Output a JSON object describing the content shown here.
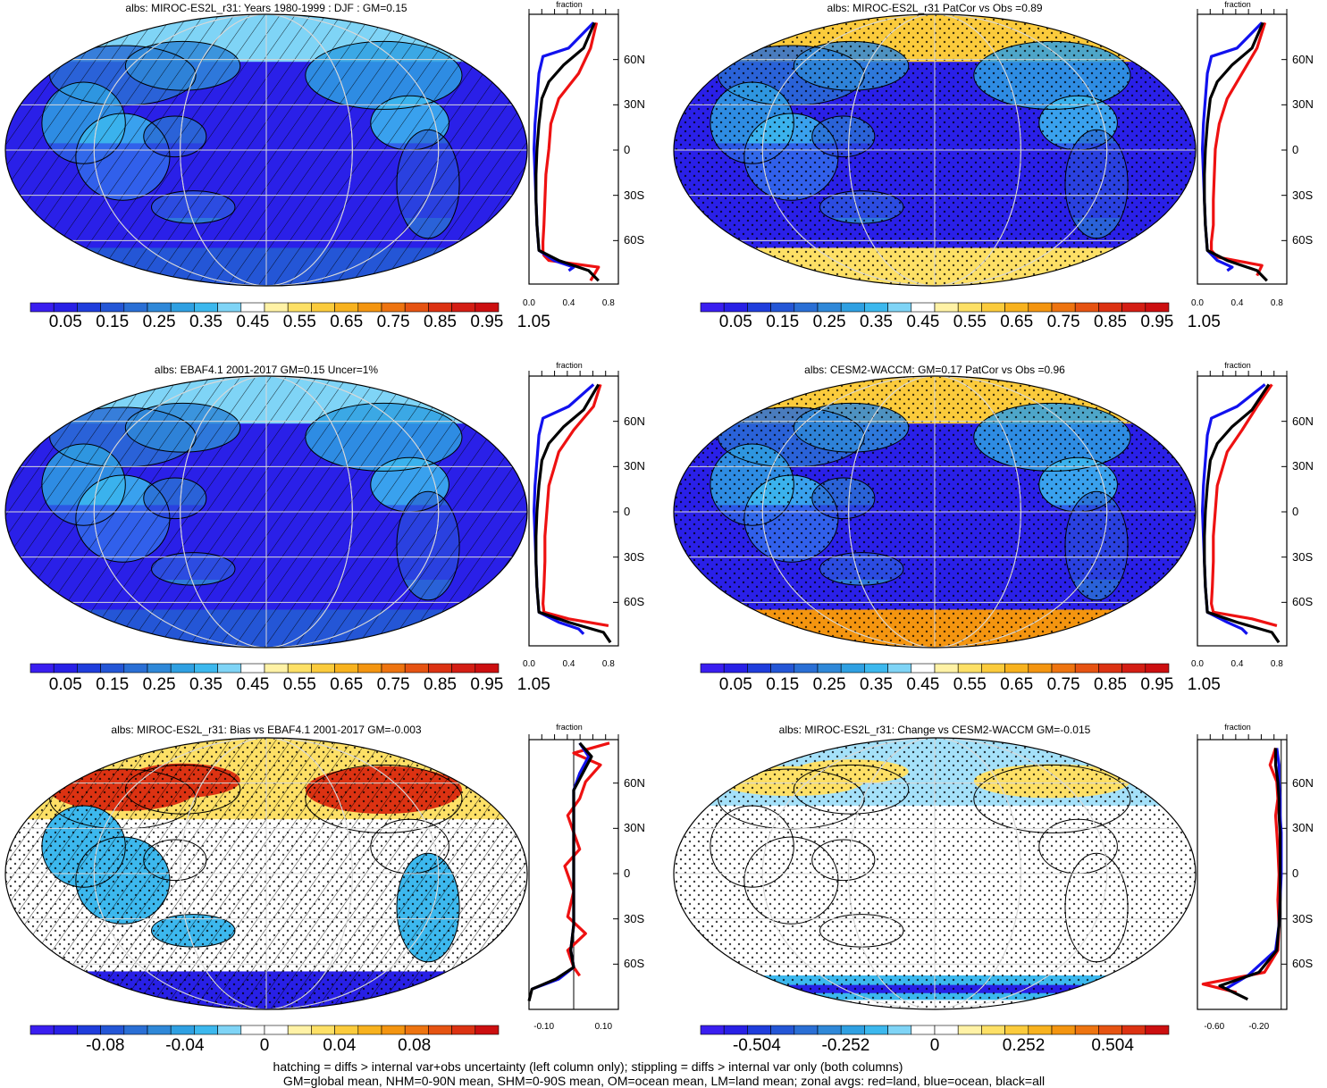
{
  "panels": [
    {
      "title": "albs: MIROC-ES2L_r31: Years 1980-1999 : DJF : GM=0.15",
      "fraction_label": "fraction",
      "x_ticks": [
        "0.0",
        "0.4",
        "0.8"
      ],
      "x_range": [
        0,
        0.9
      ],
      "zero_line": null,
      "type": "abs",
      "hatch": true,
      "stipple": false
    },
    {
      "title": "albs: MIROC-ES2L_r31 PatCor vs Obs =0.89",
      "fraction_label": "fraction",
      "x_ticks": [
        "0.0",
        "0.4",
        "0.8"
      ],
      "x_range": [
        0,
        0.9
      ],
      "zero_line": null,
      "type": "abs",
      "hatch": false,
      "stipple": true
    },
    {
      "title": "albs: EBAF4.1 2001-2017 GM=0.15 Uncer=1%",
      "fraction_label": "fraction",
      "x_ticks": [
        "0.0",
        "0.4",
        "0.8"
      ],
      "x_range": [
        0,
        0.9
      ],
      "zero_line": null,
      "type": "abs",
      "hatch": true,
      "stipple": false
    },
    {
      "title": "albs: CESM2-WACCM: GM=0.17 PatCor vs Obs =0.96",
      "fraction_label": "fraction",
      "x_ticks": [
        "0.0",
        "0.4",
        "0.8"
      ],
      "x_range": [
        0,
        0.9
      ],
      "zero_line": null,
      "type": "abs",
      "hatch": false,
      "stipple": true
    },
    {
      "title": "albs: MIROC-ES2L_r31: Bias vs EBAF4.1 2001-2017 GM=-0.003",
      "fraction_label": "fraction",
      "x_ticks": [
        "-0.10",
        "0.10"
      ],
      "x_range": [
        -0.15,
        0.15
      ],
      "zero_line": 0,
      "type": "diff",
      "hatch": true,
      "stipple": true
    },
    {
      "title": "albs: MIROC-ES2L_r31: Change vs CESM2-WACCM GM=-0.015",
      "fraction_label": "fraction",
      "x_ticks": [
        "-0.60",
        "-0.20"
      ],
      "x_range": [
        -0.75,
        0.05
      ],
      "zero_line": 0,
      "type": "diff",
      "hatch": false,
      "stipple": true
    }
  ],
  "lat_labels": [
    "60N",
    "30N",
    "0",
    "30S",
    "60S"
  ],
  "colorbars": {
    "abs": {
      "labels": [
        "0.05",
        "0.15",
        "0.25",
        "0.35",
        "0.45",
        "0.55",
        "0.65",
        "0.75",
        "0.85",
        "0.95",
        "1.05"
      ],
      "colors": [
        "#3a1ef0",
        "#2820e6",
        "#1f3ddc",
        "#2456d6",
        "#2a6fd5",
        "#2f88d8",
        "#2fa0e2",
        "#3cb8ee",
        "#7fd4f6",
        "#ffffff",
        "#fff2a6",
        "#fde066",
        "#fbcb3c",
        "#f8b21e",
        "#f49510",
        "#ee7410",
        "#e65312",
        "#dc3212",
        "#d41e14",
        "#cc0f10"
      ]
    },
    "bias": {
      "labels": [
        "-0.08",
        "-0.04",
        "0",
        "0.04",
        "0.08"
      ],
      "colors": [
        "#3a1ef0",
        "#2820e6",
        "#1f3ddc",
        "#2456d6",
        "#2a6fd5",
        "#2f88d8",
        "#2fa0e2",
        "#3cb8ee",
        "#7fd4f6",
        "#ffffff",
        "#ffffff",
        "#fff2a6",
        "#fde066",
        "#fbcb3c",
        "#f8b21e",
        "#f49510",
        "#ee7410",
        "#e65312",
        "#dc3212",
        "#cc0f10"
      ]
    },
    "change": {
      "labels": [
        "-0.504",
        "-0.252",
        "0",
        "0.252",
        "0.504"
      ],
      "colors": [
        "#3a1ef0",
        "#2820e6",
        "#1f3ddc",
        "#2456d6",
        "#2a6fd5",
        "#2f88d8",
        "#2fa0e2",
        "#3cb8ee",
        "#7fd4f6",
        "#ffffff",
        "#ffffff",
        "#fff2a6",
        "#fde066",
        "#fbcb3c",
        "#f8b21e",
        "#f49510",
        "#ee7410",
        "#e65312",
        "#dc3212",
        "#cc0f10"
      ]
    }
  },
  "legend_colors": {
    "land": "#ee1111",
    "ocean": "#1111ee",
    "all": "#000000"
  },
  "footer": {
    "line1": "hatching = diffs > internal var+obs uncertainty (left column only); stippling = diffs > internal var only (both columns)",
    "line2": "GM=global mean, NHM=0-90N mean, SHM=0-90S mean, OM=ocean mean, LM=land mean; zonal avgs: red=land, blue=ocean, black=all"
  },
  "chart_data": [
    {
      "type": "line",
      "title": "albs: MIROC-ES2L_r31: Years 1980-1999 : DJF : GM=0.15",
      "xlabel": "fraction",
      "ylabel": "",
      "xlim": [
        0,
        0.9
      ],
      "ylim": [
        -80,
        80
      ],
      "series": [
        {
          "name": "land",
          "x": [
            0.68,
            0.62,
            0.5,
            0.3,
            0.22,
            0.2,
            0.17,
            0.16,
            0.15,
            0.14,
            0.14,
            0.15,
            0.2,
            0.7,
            0.62
          ],
          "y": [
            75,
            60,
            45,
            30,
            15,
            0,
            -15,
            -30,
            -45,
            -55,
            -60,
            -63,
            -66,
            -70,
            -78
          ]
        },
        {
          "name": "ocean",
          "x": [
            0.65,
            0.4,
            0.14,
            0.1,
            0.08,
            0.06,
            0.05,
            0.06,
            0.07,
            0.08,
            0.1,
            0.25,
            0.45,
            0.4
          ],
          "y": [
            75,
            60,
            55,
            45,
            30,
            15,
            0,
            -15,
            -30,
            -45,
            -60,
            -66,
            -70,
            -72
          ]
        },
        {
          "name": "all",
          "x": [
            0.66,
            0.55,
            0.35,
            0.2,
            0.13,
            0.1,
            0.08,
            0.07,
            0.07,
            0.08,
            0.1,
            0.3,
            0.6,
            0.7
          ],
          "y": [
            75,
            60,
            50,
            40,
            30,
            15,
            0,
            -15,
            -30,
            -45,
            -60,
            -66,
            -72,
            -78
          ]
        }
      ]
    },
    {
      "type": "line",
      "title": "albs: MIROC-ES2L_r31 PatCor vs Obs =0.89",
      "xlabel": "fraction",
      "ylabel": "",
      "xlim": [
        0,
        0.9
      ],
      "ylim": [
        -80,
        80
      ],
      "series": [
        {
          "name": "land",
          "x": [
            0.68,
            0.6,
            0.45,
            0.3,
            0.22,
            0.18,
            0.17,
            0.16,
            0.16,
            0.14,
            0.14,
            0.2,
            0.65,
            0.6
          ],
          "y": [
            75,
            60,
            45,
            30,
            15,
            0,
            -15,
            -30,
            -45,
            -55,
            -60,
            -64,
            -69,
            -75
          ]
        },
        {
          "name": "ocean",
          "x": [
            0.65,
            0.4,
            0.14,
            0.1,
            0.08,
            0.06,
            0.05,
            0.06,
            0.07,
            0.08,
            0.1,
            0.2,
            0.35,
            0.3
          ],
          "y": [
            75,
            60,
            55,
            45,
            30,
            15,
            0,
            -15,
            -30,
            -45,
            -60,
            -66,
            -70,
            -72
          ]
        },
        {
          "name": "all",
          "x": [
            0.66,
            0.55,
            0.35,
            0.2,
            0.13,
            0.1,
            0.08,
            0.07,
            0.07,
            0.08,
            0.1,
            0.3,
            0.6,
            0.7
          ],
          "y": [
            75,
            60,
            50,
            40,
            30,
            15,
            0,
            -15,
            -30,
            -45,
            -60,
            -66,
            -72,
            -78
          ]
        }
      ]
    },
    {
      "type": "line",
      "title": "albs: EBAF4.1 2001-2017 GM=0.15 Uncer=1%",
      "xlabel": "fraction",
      "ylabel": "",
      "xlim": [
        0,
        0.9
      ],
      "ylim": [
        -80,
        80
      ],
      "series": [
        {
          "name": "land",
          "x": [
            0.72,
            0.65,
            0.45,
            0.3,
            0.25,
            0.2,
            0.18,
            0.16,
            0.16,
            0.15,
            0.14,
            0.15,
            0.4,
            0.8
          ],
          "y": [
            75,
            62,
            48,
            35,
            25,
            15,
            0,
            -15,
            -30,
            -45,
            -55,
            -60,
            -64,
            -68
          ]
        },
        {
          "name": "ocean",
          "x": [
            0.65,
            0.4,
            0.14,
            0.1,
            0.08,
            0.06,
            0.05,
            0.06,
            0.07,
            0.08,
            0.1,
            0.3,
            0.5,
            0.55
          ],
          "y": [
            75,
            62,
            55,
            45,
            30,
            15,
            0,
            -15,
            -30,
            -45,
            -60,
            -66,
            -70,
            -73
          ]
        },
        {
          "name": "all",
          "x": [
            0.7,
            0.55,
            0.35,
            0.2,
            0.13,
            0.1,
            0.08,
            0.07,
            0.07,
            0.08,
            0.1,
            0.4,
            0.75,
            0.82
          ],
          "y": [
            75,
            60,
            50,
            40,
            30,
            15,
            0,
            -15,
            -30,
            -45,
            -60,
            -66,
            -72,
            -78
          ]
        }
      ]
    },
    {
      "type": "line",
      "title": "albs: CESM2-WACCM: GM=0.17 PatCor vs Obs =0.96",
      "xlabel": "fraction",
      "ylabel": "",
      "xlim": [
        0,
        0.9
      ],
      "ylim": [
        -80,
        80
      ],
      "series": [
        {
          "name": "land",
          "x": [
            0.75,
            0.6,
            0.45,
            0.3,
            0.25,
            0.2,
            0.18,
            0.16,
            0.16,
            0.15,
            0.14,
            0.16,
            0.55,
            0.8
          ],
          "y": [
            75,
            62,
            48,
            35,
            25,
            15,
            0,
            -15,
            -30,
            -45,
            -55,
            -60,
            -64,
            -68
          ]
        },
        {
          "name": "ocean",
          "x": [
            0.68,
            0.4,
            0.14,
            0.1,
            0.08,
            0.06,
            0.05,
            0.06,
            0.07,
            0.08,
            0.1,
            0.3,
            0.45,
            0.5
          ],
          "y": [
            75,
            62,
            55,
            45,
            30,
            15,
            0,
            -15,
            -30,
            -45,
            -60,
            -66,
            -70,
            -73
          ]
        },
        {
          "name": "all",
          "x": [
            0.72,
            0.55,
            0.35,
            0.2,
            0.13,
            0.1,
            0.08,
            0.07,
            0.07,
            0.08,
            0.1,
            0.4,
            0.75,
            0.82
          ],
          "y": [
            75,
            60,
            50,
            40,
            30,
            15,
            0,
            -15,
            -30,
            -45,
            -60,
            -66,
            -72,
            -78
          ]
        }
      ]
    },
    {
      "type": "line",
      "title": "albs: MIROC-ES2L_r31: Bias vs EBAF4.1 2001-2017 GM=-0.003",
      "xlabel": "fraction",
      "ylabel": "",
      "xlim": [
        -0.15,
        0.15
      ],
      "ylim": [
        -80,
        80
      ],
      "series": [
        {
          "name": "land",
          "x": [
            0.12,
            0.0,
            0.09,
            0.04,
            0.02,
            -0.02,
            0.0,
            0.02,
            -0.03,
            0.0,
            -0.02,
            0.04,
            -0.02,
            0.0,
            0.02
          ],
          "y": [
            78,
            72,
            65,
            55,
            45,
            35,
            25,
            15,
            5,
            -10,
            -25,
            -35,
            -45,
            -55,
            -60
          ]
        },
        {
          "name": "ocean",
          "x": [
            0.02,
            0.05,
            0.02,
            0.0,
            0.0,
            0.0,
            0.0,
            0.0,
            0.0,
            0.0,
            -0.01,
            0.0,
            -0.05,
            -0.14
          ],
          "y": [
            78,
            70,
            60,
            50,
            40,
            30,
            15,
            0,
            -15,
            -30,
            -45,
            -55,
            -62,
            -68
          ]
        },
        {
          "name": "all",
          "x": [
            0.02,
            0.06,
            0.03,
            0.0,
            0.0,
            0.0,
            0.0,
            0.0,
            0.0,
            0.0,
            -0.01,
            0.0,
            -0.06,
            -0.14,
            -0.15
          ],
          "y": [
            78,
            70,
            60,
            50,
            40,
            30,
            15,
            0,
            -15,
            -30,
            -45,
            -55,
            -62,
            -68,
            -75
          ]
        }
      ]
    },
    {
      "type": "line",
      "title": "albs: MIROC-ES2L_r31: Change vs CESM2-WACCM GM=-0.015",
      "xlabel": "fraction",
      "ylabel": "",
      "xlim": [
        -0.75,
        0.05
      ],
      "ylim": [
        -80,
        80
      ],
      "series": [
        {
          "name": "land",
          "x": [
            -0.05,
            -0.1,
            -0.04,
            -0.03,
            -0.05,
            -0.04,
            -0.03,
            -0.02,
            -0.03,
            -0.02,
            -0.03,
            -0.15,
            -0.7,
            -0.4
          ],
          "y": [
            75,
            65,
            55,
            45,
            35,
            25,
            15,
            0,
            -15,
            -30,
            -45,
            -58,
            -65,
            -70
          ]
        },
        {
          "name": "ocean",
          "x": [
            -0.04,
            -0.02,
            -0.02,
            -0.01,
            -0.01,
            0.0,
            0.0,
            0.0,
            -0.01,
            -0.02,
            -0.05,
            -0.3,
            -0.5
          ],
          "y": [
            75,
            65,
            55,
            45,
            35,
            25,
            15,
            0,
            -15,
            -30,
            -45,
            -60,
            -68
          ]
        },
        {
          "name": "all",
          "x": [
            -0.05,
            -0.05,
            -0.03,
            -0.02,
            -0.02,
            -0.01,
            -0.01,
            -0.01,
            -0.01,
            -0.02,
            -0.04,
            -0.2,
            -0.55,
            -0.3
          ],
          "y": [
            75,
            65,
            55,
            45,
            35,
            25,
            15,
            0,
            -15,
            -30,
            -45,
            -58,
            -66,
            -74
          ]
        }
      ]
    }
  ]
}
